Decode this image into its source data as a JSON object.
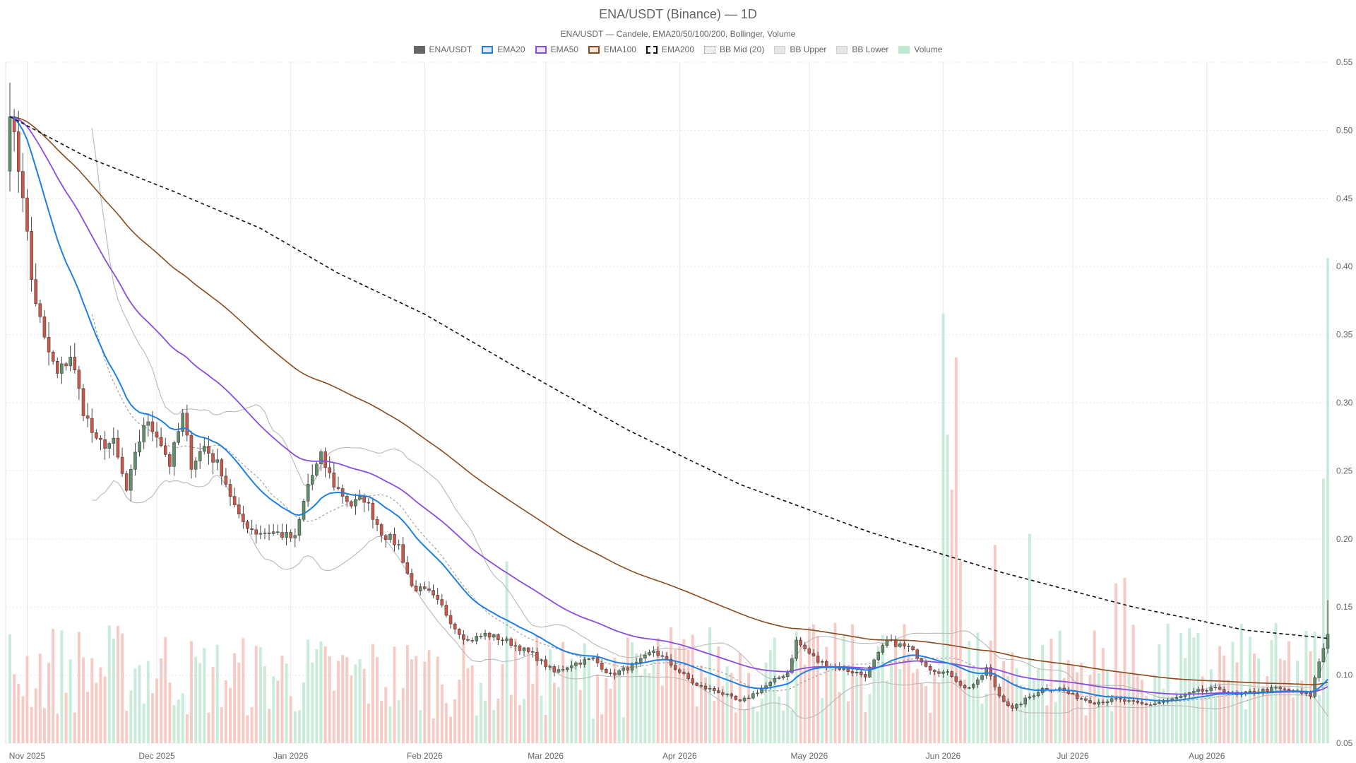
{
  "chart_data": {
    "type": "candlestick",
    "title": "ENA/USDT (Binance) — 1D",
    "subtitle": "ENA/USDT — Candele, EMA20/50/100/200, Bollinger, Volume",
    "legend": [
      {
        "label": "ENA/USDT",
        "key": "price"
      },
      {
        "label": "EMA20",
        "key": "ema20"
      },
      {
        "label": "EMA50",
        "key": "ema50"
      },
      {
        "label": "EMA100",
        "key": "ema100"
      },
      {
        "label": "EMA200",
        "key": "ema200"
      },
      {
        "label": "BB Mid (20)",
        "key": "bbmid"
      },
      {
        "label": "BB Upper",
        "key": "bbupper"
      },
      {
        "label": "BB Lower",
        "key": "bblower"
      },
      {
        "label": "Volume",
        "key": "volume"
      }
    ],
    "legend_position": "top",
    "x_ticks": [
      "Nov 2025",
      "Dec 2025",
      "Jan 2026",
      "Feb 2026",
      "Mar 2026",
      "Apr 2026",
      "May 2026",
      "Jun 2026",
      "Jul 2026",
      "Aug 2026"
    ],
    "y_ticks": [
      "0.05",
      "0.10",
      "0.15",
      "0.20",
      "0.25",
      "0.30",
      "0.35",
      "0.40",
      "0.45",
      "0.50",
      "0.55"
    ],
    "ylim": [
      0.05,
      0.55
    ],
    "y_axis_position": "right",
    "grid": true,
    "colors": {
      "up": "#5f8f6b",
      "down": "#c9584c",
      "wick": "#444444",
      "ema20": "#1f7fe0",
      "ema50": "#8a4ce0",
      "ema100": "#8a4a1c",
      "ema200": "#111111",
      "bb": "#b8b8b8",
      "vol_up": "#bfe8d2",
      "vol_down": "#f6c2bb"
    },
    "close_anchors": [
      [
        "2025-10-28",
        0.51
      ],
      [
        "2025-10-31",
        0.455
      ],
      [
        "2025-11-02",
        0.39
      ],
      [
        "2025-11-05",
        0.345
      ],
      [
        "2025-11-08",
        0.32
      ],
      [
        "2025-11-11",
        0.335
      ],
      [
        "2025-11-14",
        0.295
      ],
      [
        "2025-11-17",
        0.27
      ],
      [
        "2025-11-21",
        0.27
      ],
      [
        "2025-11-24",
        0.235
      ],
      [
        "2025-11-28",
        0.285
      ],
      [
        "2025-12-01",
        0.278
      ],
      [
        "2025-12-04",
        0.255
      ],
      [
        "2025-12-07",
        0.29
      ],
      [
        "2025-12-09",
        0.255
      ],
      [
        "2025-12-12",
        0.268
      ],
      [
        "2025-12-16",
        0.25
      ],
      [
        "2025-12-20",
        0.215
      ],
      [
        "2025-12-24",
        0.205
      ],
      [
        "2025-12-28",
        0.205
      ],
      [
        "2026-01-02",
        0.2
      ],
      [
        "2026-01-05",
        0.24
      ],
      [
        "2026-01-08",
        0.26
      ],
      [
        "2026-01-11",
        0.24
      ],
      [
        "2026-01-15",
        0.225
      ],
      [
        "2026-01-18",
        0.23
      ],
      [
        "2026-01-22",
        0.205
      ],
      [
        "2026-01-26",
        0.195
      ],
      [
        "2026-01-29",
        0.165
      ],
      [
        "2026-02-02",
        0.16
      ],
      [
        "2026-02-05",
        0.15
      ],
      [
        "2026-02-08",
        0.135
      ],
      [
        "2026-02-11",
        0.125
      ],
      [
        "2026-02-15",
        0.13
      ],
      [
        "2026-02-20",
        0.125
      ],
      [
        "2026-02-26",
        0.115
      ],
      [
        "2026-03-03",
        0.102
      ],
      [
        "2026-03-07",
        0.108
      ],
      [
        "2026-03-12",
        0.112
      ],
      [
        "2026-03-16",
        0.1
      ],
      [
        "2026-03-22",
        0.108
      ],
      [
        "2026-03-26",
        0.118
      ],
      [
        "2026-03-31",
        0.105
      ],
      [
        "2026-04-05",
        0.092
      ],
      [
        "2026-04-10",
        0.088
      ],
      [
        "2026-04-15",
        0.08
      ],
      [
        "2026-04-20",
        0.09
      ],
      [
        "2026-04-26",
        0.102
      ],
      [
        "2026-04-28",
        0.125
      ],
      [
        "2026-05-03",
        0.11
      ],
      [
        "2026-05-08",
        0.105
      ],
      [
        "2026-05-14",
        0.1
      ],
      [
        "2026-05-19",
        0.125
      ],
      [
        "2026-05-24",
        0.12
      ],
      [
        "2026-05-29",
        0.105
      ],
      [
        "2026-06-03",
        0.1
      ],
      [
        "2026-06-06",
        0.09
      ],
      [
        "2026-06-09",
        0.095
      ],
      [
        "2026-06-11",
        0.105
      ],
      [
        "2026-06-14",
        0.085
      ],
      [
        "2026-06-17",
        0.075
      ],
      [
        "2026-06-20",
        0.082
      ],
      [
        "2026-06-24",
        0.09
      ],
      [
        "2026-06-28",
        0.09
      ],
      [
        "2026-07-01",
        0.085
      ],
      [
        "2026-07-06",
        0.08
      ],
      [
        "2026-07-11",
        0.082
      ],
      [
        "2026-07-18",
        0.078
      ],
      [
        "2026-07-24",
        0.082
      ],
      [
        "2026-07-30",
        0.088
      ],
      [
        "2026-08-04",
        0.09
      ],
      [
        "2026-08-08",
        0.085
      ],
      [
        "2026-08-12",
        0.088
      ],
      [
        "2026-08-17",
        0.09
      ],
      [
        "2026-08-21",
        0.088
      ],
      [
        "2026-08-25",
        0.085
      ],
      [
        "2026-08-27",
        0.11
      ],
      [
        "2026-08-29",
        0.13
      ]
    ],
    "ema200_points": [
      [
        "2025-10-28",
        0.51
      ],
      [
        "2025-11-15",
        0.48
      ],
      [
        "2025-12-05",
        0.455
      ],
      [
        "2025-12-25",
        0.428
      ],
      [
        "2026-01-12",
        0.395
      ],
      [
        "2026-02-01",
        0.365
      ],
      [
        "2026-02-20",
        0.33
      ],
      [
        "2026-03-20",
        0.28
      ],
      [
        "2026-04-15",
        0.24
      ],
      [
        "2026-05-15",
        0.205
      ],
      [
        "2026-06-15",
        0.175
      ],
      [
        "2026-07-15",
        0.15
      ],
      [
        "2026-08-10",
        0.133
      ],
      [
        "2026-08-29",
        0.127
      ]
    ],
    "volume_scale": "relative"
  }
}
